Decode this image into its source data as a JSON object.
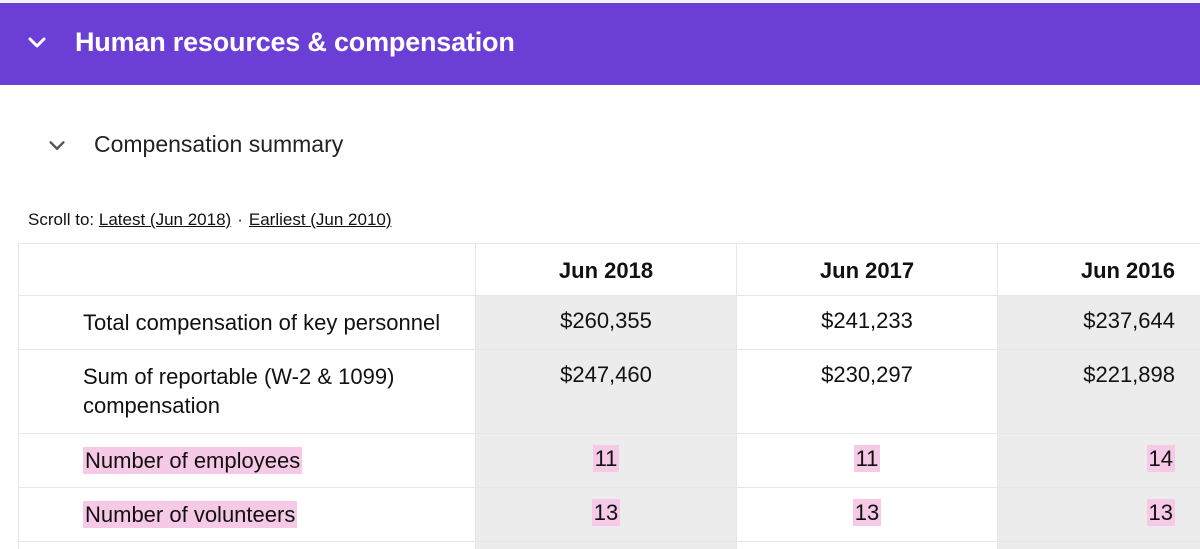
{
  "section": {
    "title": "Human resources & compensation",
    "header_color": "#6b3fd6",
    "toggle_icon": "chevron-down-icon"
  },
  "subsection": {
    "title": "Compensation summary",
    "toggle_icon": "chevron-down-icon"
  },
  "scroll_to": {
    "label": "Scroll to:",
    "latest": "Latest (Jun 2018)",
    "separator": "·",
    "earliest": "Earliest (Jun 2010)"
  },
  "table": {
    "columns": [
      "Jun 2018",
      "Jun 2017",
      "Jun 2016"
    ],
    "rows": [
      {
        "label": "Total compensation of key personnel",
        "values": [
          "$260,355",
          "$241,233",
          "$237,644"
        ],
        "highlighted": false
      },
      {
        "label": "Sum of reportable (W-2 & 1099) compensation",
        "values": [
          "$247,460",
          "$230,297",
          "$221,898"
        ],
        "highlighted": false
      },
      {
        "label": "Number of employees",
        "values": [
          "11",
          "11",
          "14"
        ],
        "highlighted": true
      },
      {
        "label": "Number of volunteers",
        "values": [
          "13",
          "13",
          "13"
        ],
        "highlighted": true
      }
    ],
    "highlight_color": "#f6c9e6"
  }
}
